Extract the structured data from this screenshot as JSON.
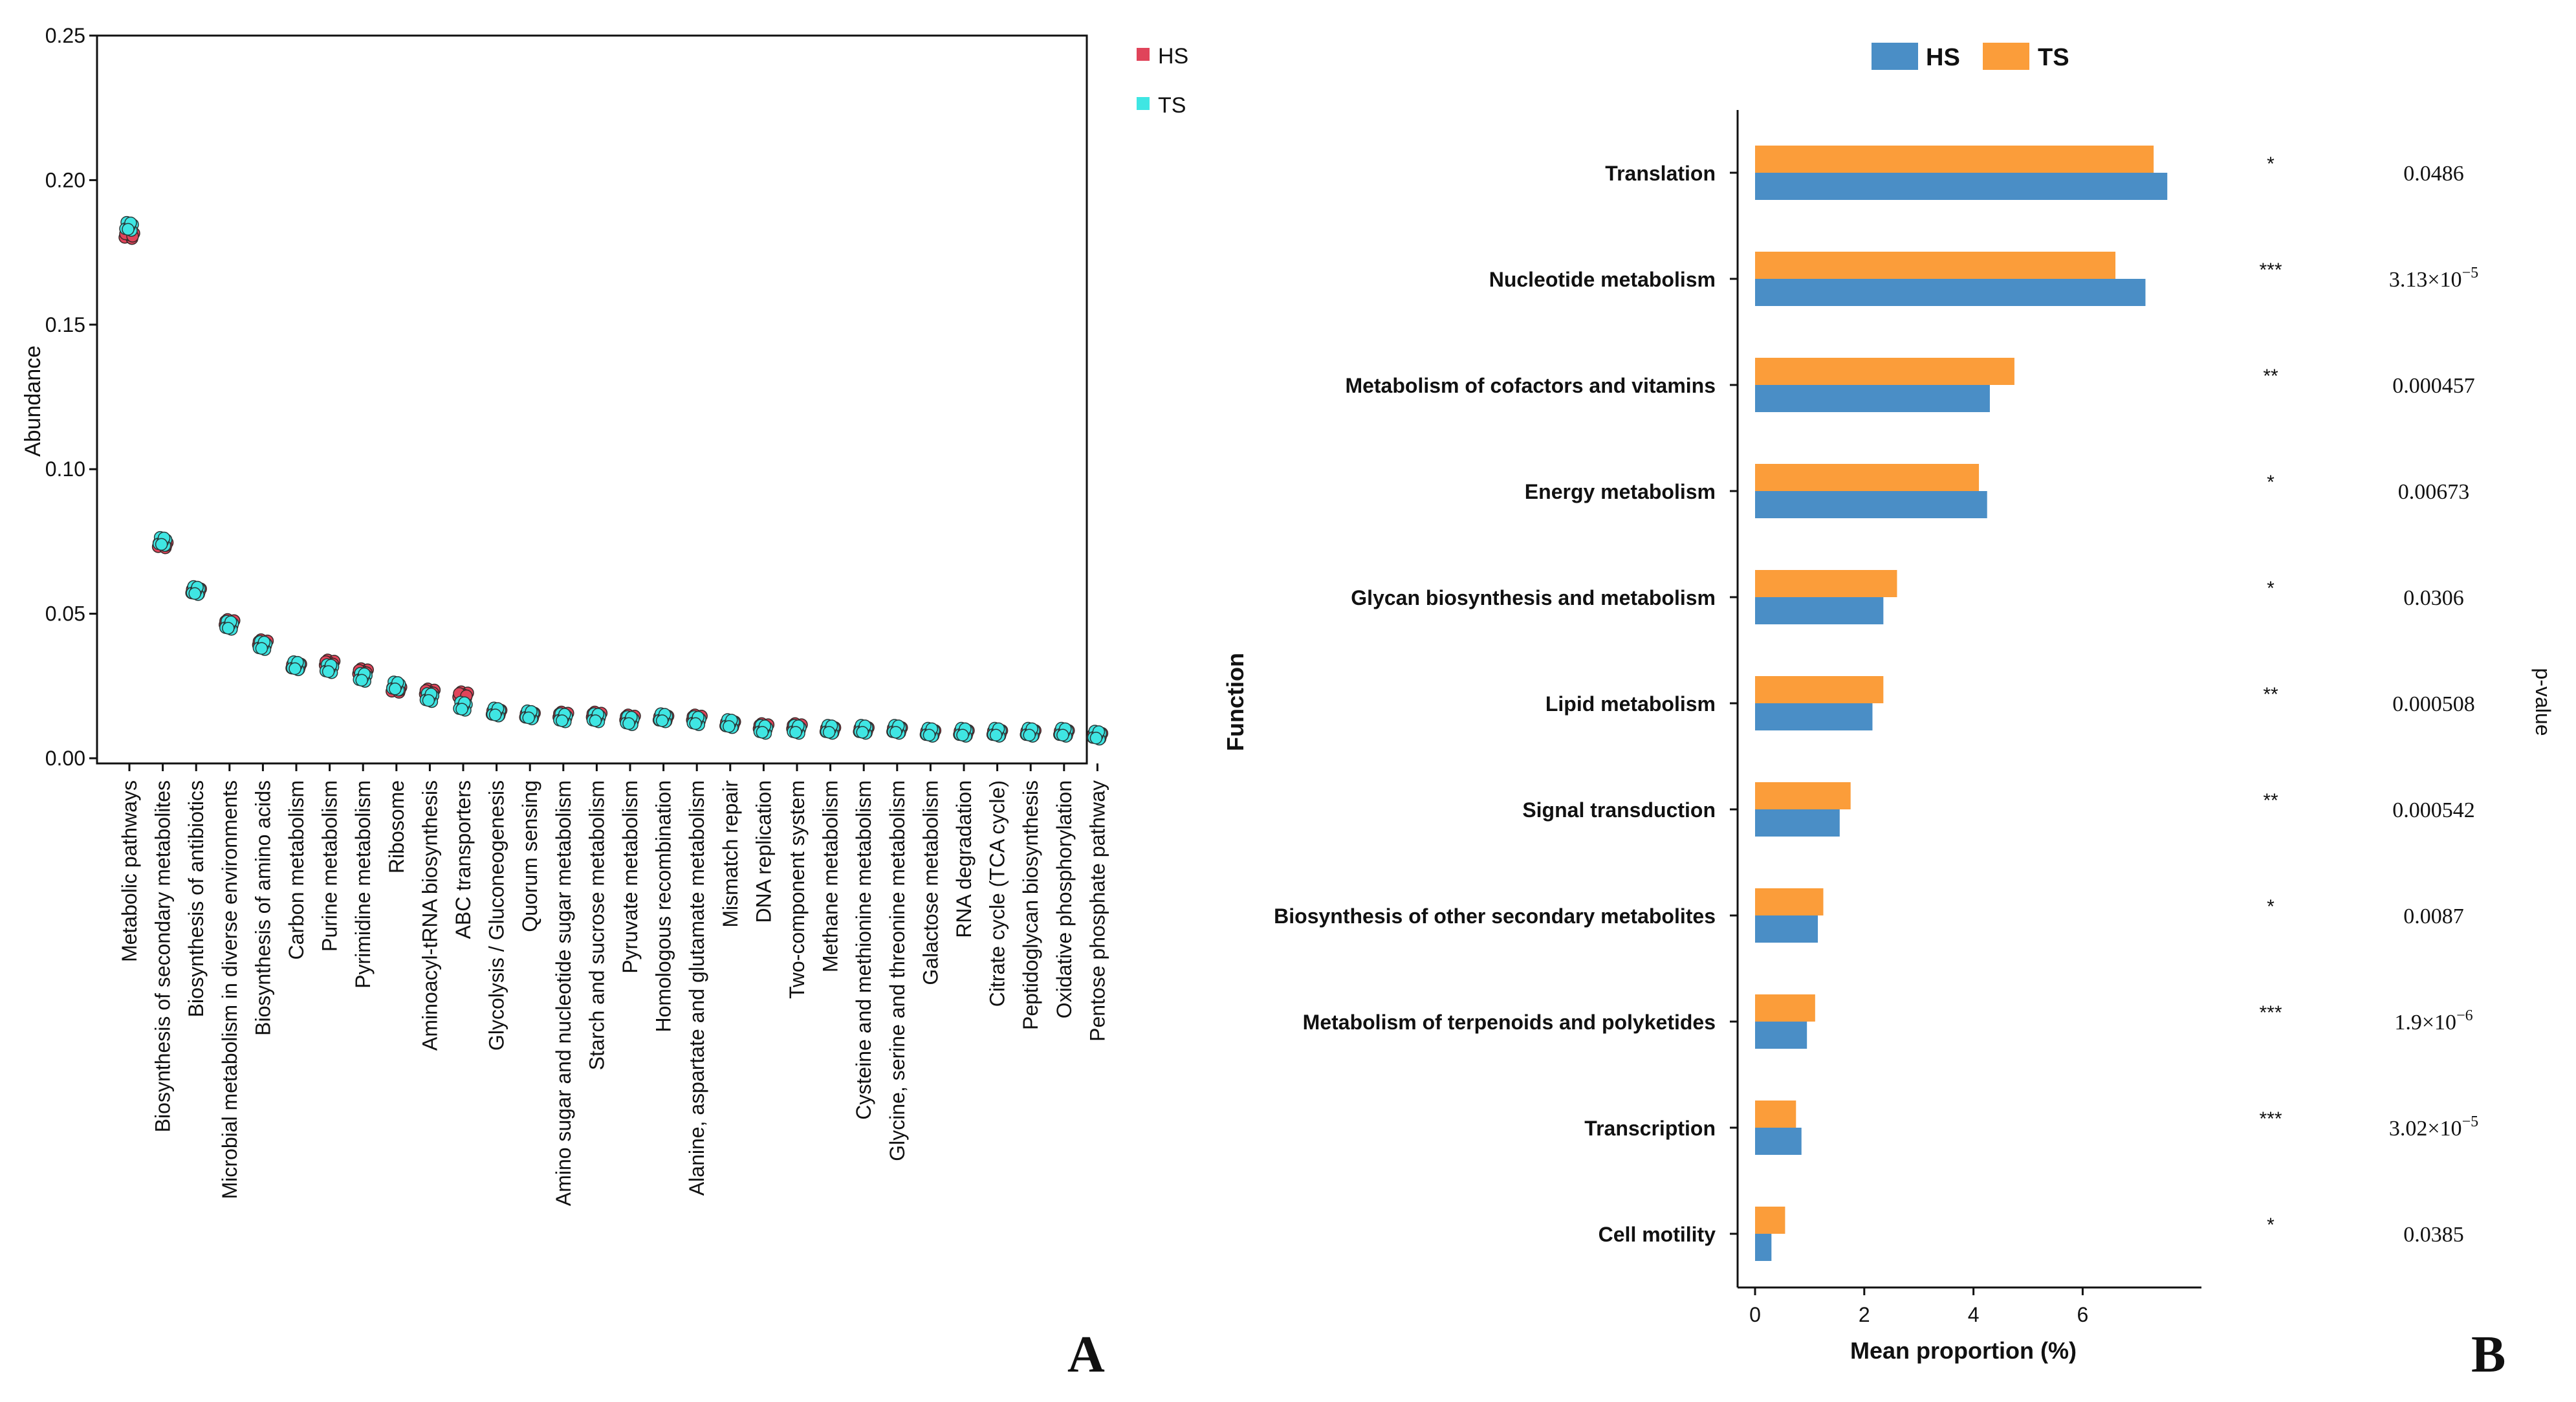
{
  "colors": {
    "hs_a": "#e0445a",
    "ts_a": "#3fe6e3",
    "hs_b": "#4a8ec6",
    "ts_b": "#fb9d3a",
    "axis": "#111111"
  },
  "panel_a_label": "A",
  "panel_b_label": "B",
  "chart_data": [
    {
      "type": "scatter",
      "panel": "A",
      "title": "",
      "xlabel": "",
      "ylabel": "Abundance",
      "ylim": [
        0,
        0.25
      ],
      "yticks": [
        "0.00",
        "0.05",
        "0.10",
        "0.15",
        "0.20",
        "0.25"
      ],
      "ytick_values": [
        0,
        0.05,
        0.1,
        0.15,
        0.2,
        0.25
      ],
      "legend": [
        "HS",
        "TS"
      ],
      "legend_position": "top-right",
      "categories": [
        "Metabolic pathways",
        "Biosynthesis of secondary metabolites",
        "Biosynthesis of antibiotics",
        "Microbial metabolism in diverse environments",
        "Biosynthesis of amino acids",
        "Carbon metabolism",
        "Purine metabolism",
        "Pyrimidine metabolism",
        "Ribosome",
        "Aminoacyl-tRNA biosynthesis",
        "ABC transporters",
        "Glycolysis / Gluconeogenesis",
        "Quorum sensing",
        "Amino sugar and nucleotide sugar metabolism",
        "Starch and sucrose metabolism",
        "Pyruvate metabolism",
        "Homologous recombination",
        "Alanine, aspartate and glutamate metabolism",
        "Mismatch repair",
        "DNA replication",
        "Two-component system",
        "Methane metabolism",
        "Cysteine and methionine metabolism",
        "Glycine, serine and threonine metabolism",
        "Galactose metabolism",
        "RNA degradation",
        "Citrate cycle (TCA cycle)",
        "Peptidoglycan biosynthesis",
        "Oxidative phosphorylation",
        "Pentose phosphate pathway"
      ],
      "series": [
        {
          "name": "HS",
          "values": [
            0.181,
            0.074,
            0.058,
            0.047,
            0.04,
            0.032,
            0.033,
            0.03,
            0.024,
            0.023,
            0.022,
            0.016,
            0.015,
            0.015,
            0.015,
            0.014,
            0.014,
            0.014,
            0.012,
            0.011,
            0.011,
            0.01,
            0.01,
            0.01,
            0.009,
            0.009,
            0.009,
            0.009,
            0.009,
            0.008
          ]
        },
        {
          "name": "TS",
          "values": [
            0.184,
            0.075,
            0.058,
            0.046,
            0.039,
            0.032,
            0.031,
            0.028,
            0.025,
            0.021,
            0.018,
            0.016,
            0.015,
            0.014,
            0.014,
            0.013,
            0.014,
            0.013,
            0.012,
            0.01,
            0.01,
            0.01,
            0.01,
            0.01,
            0.009,
            0.009,
            0.009,
            0.009,
            0.009,
            0.008
          ]
        }
      ]
    },
    {
      "type": "bar",
      "orientation": "horizontal",
      "panel": "B",
      "title": "",
      "xlabel": "Mean proportion (%)",
      "ylabel": "Function",
      "right_label": "p-value",
      "xlim": [
        0,
        8
      ],
      "xticks": [
        "0",
        "2",
        "4",
        "6"
      ],
      "xtick_values": [
        0,
        2,
        4,
        6
      ],
      "legend": [
        "HS",
        "TS"
      ],
      "legend_position": "top",
      "categories": [
        "Translation",
        "Nucleotide metabolism",
        "Metabolism of cofactors and vitamins",
        "Energy metabolism",
        "Glycan biosynthesis and metabolism",
        "Lipid metabolism",
        "Signal transduction",
        "Biosynthesis of other secondary metabolites",
        "Metabolism of terpenoids and polyketides",
        "Transcription",
        "Cell motility"
      ],
      "series": [
        {
          "name": "HS",
          "values": [
            7.55,
            7.15,
            4.3,
            4.25,
            2.35,
            2.15,
            1.55,
            1.15,
            0.95,
            0.85,
            0.3
          ]
        },
        {
          "name": "TS",
          "values": [
            7.3,
            6.6,
            4.75,
            4.1,
            2.6,
            2.35,
            1.75,
            1.25,
            1.1,
            0.75,
            0.55
          ]
        }
      ],
      "significance": [
        "*",
        "***",
        "**",
        "*",
        "*",
        "**",
        "**",
        "*",
        "***",
        "***",
        "*"
      ],
      "p_values": [
        {
          "base": "0.0486",
          "exp": ""
        },
        {
          "base": "3.13×10",
          "exp": "−5"
        },
        {
          "base": "0.000457",
          "exp": ""
        },
        {
          "base": "0.00673",
          "exp": ""
        },
        {
          "base": "0.0306",
          "exp": ""
        },
        {
          "base": "0.000508",
          "exp": ""
        },
        {
          "base": "0.000542",
          "exp": ""
        },
        {
          "base": "0.0087",
          "exp": ""
        },
        {
          "base": "1.9×10",
          "exp": "−6"
        },
        {
          "base": "3.02×10",
          "exp": "−5"
        },
        {
          "base": "0.0385",
          "exp": ""
        }
      ]
    }
  ]
}
